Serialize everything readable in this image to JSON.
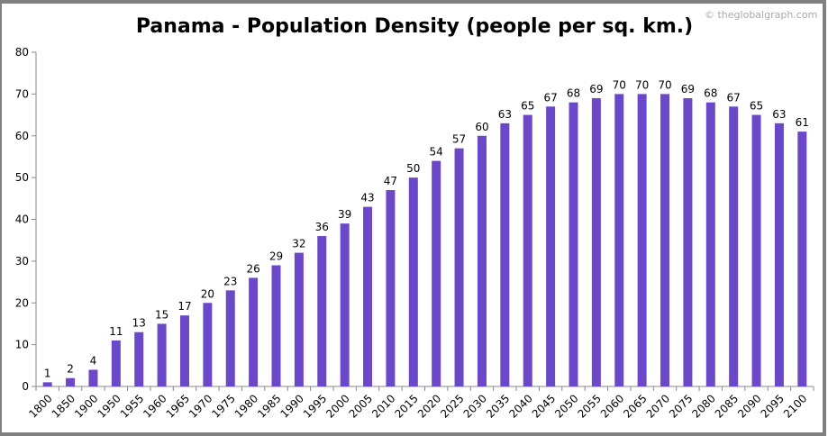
{
  "chart_data": {
    "type": "bar",
    "title": "Panama - Population Density (people per sq. km.)",
    "watermark": "© theglobalgraph.com",
    "xlabel": "",
    "ylabel": "",
    "ylim": [
      0,
      80
    ],
    "yticks": [
      0,
      10,
      20,
      30,
      40,
      50,
      60,
      70,
      80
    ],
    "grid": false,
    "bar_color": "#6a48c8",
    "categories": [
      "1800",
      "1850",
      "1900",
      "1950",
      "1955",
      "1960",
      "1965",
      "1970",
      "1975",
      "1980",
      "1985",
      "1990",
      "1995",
      "2000",
      "2005",
      "2010",
      "2015",
      "2020",
      "2025",
      "2030",
      "2035",
      "2040",
      "2045",
      "2050",
      "2055",
      "2060",
      "2065",
      "2070",
      "2075",
      "2080",
      "2085",
      "2090",
      "2095",
      "2100"
    ],
    "values": [
      1,
      2,
      4,
      11,
      13,
      15,
      17,
      20,
      23,
      26,
      29,
      32,
      36,
      39,
      43,
      47,
      50,
      54,
      57,
      60,
      63,
      65,
      67,
      68,
      69,
      70,
      70,
      70,
      69,
      68,
      67,
      65,
      63,
      61
    ]
  }
}
